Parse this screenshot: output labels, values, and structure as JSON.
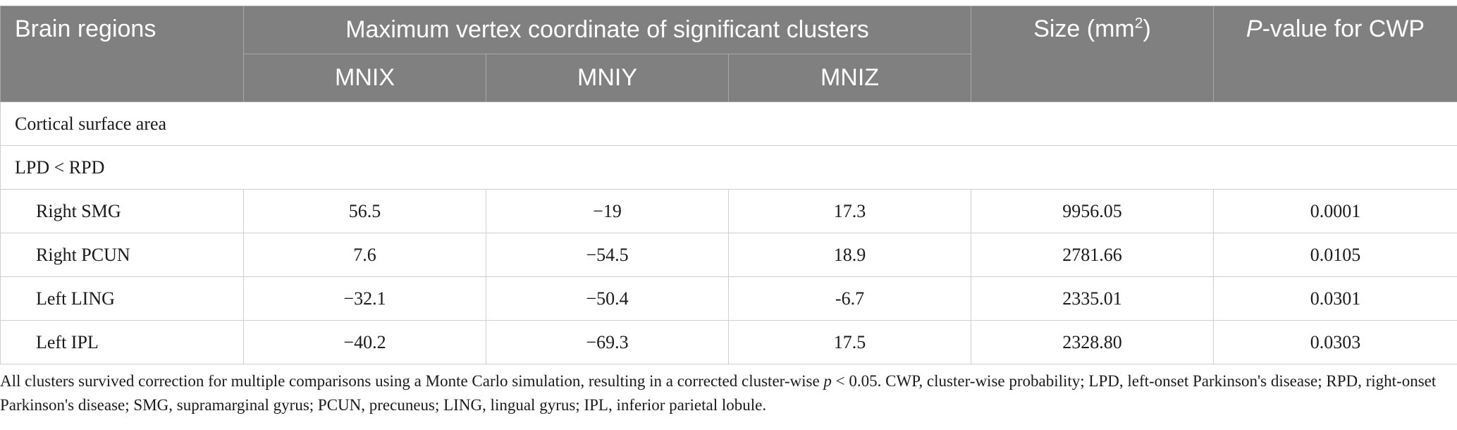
{
  "header": {
    "brain_regions": "Brain regions",
    "max_vertex": "Maximum vertex coordinate of significant clusters",
    "mnix": "MNIX",
    "mniy": "MNIY",
    "mniz": "MNIZ",
    "size_prefix": "Size (mm",
    "size_sup": "2",
    "size_suffix": ")",
    "pvalue_italic": "P",
    "pvalue_rest": "-value for CWP"
  },
  "sections": {
    "cortical": "Cortical surface area",
    "comparison": "LPD < RPD"
  },
  "rows": [
    {
      "region": "Right SMG",
      "x": "56.5",
      "y": "−19",
      "z": "17.3",
      "size": "9956.05",
      "p": "0.0001"
    },
    {
      "region": "Right PCUN",
      "x": "7.6",
      "y": "−54.5",
      "z": "18.9",
      "size": "2781.66",
      "p": "0.0105"
    },
    {
      "region": "Left LING",
      "x": "−32.1",
      "y": "−50.4",
      "z": "-6.7",
      "size": "2335.01",
      "p": "0.0301"
    },
    {
      "region": "Left IPL",
      "x": "−40.2",
      "y": "−69.3",
      "z": "17.5",
      "size": "2328.80",
      "p": "0.0303"
    }
  ],
  "footnote": {
    "part1": "All clusters survived correction for multiple comparisons using a Monte Carlo simulation, resulting in a corrected cluster-wise ",
    "p_italic": "p",
    "part2": " < 0.05. CWP, cluster-wise probability; LPD, left-onset Parkinson's disease; RPD, right-onset Parkinson's disease; SMG, supramarginal gyrus; PCUN, precuneus; LING, lingual gyrus; IPL, inferior parietal lobule."
  }
}
